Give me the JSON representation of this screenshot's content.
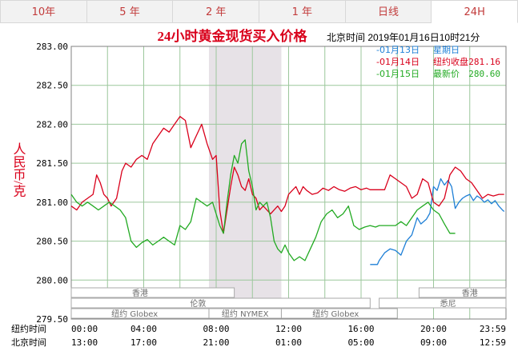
{
  "tabs": [
    {
      "label": "10年",
      "active": false
    },
    {
      "label": "5 年",
      "active": false
    },
    {
      "label": "2 年",
      "active": false
    },
    {
      "label": "1 年",
      "active": false
    },
    {
      "label": "日线",
      "active": false
    },
    {
      "label": "24H",
      "active": true
    }
  ],
  "colors": {
    "blue": "#1e7fd6",
    "red": "#d9001b",
    "green": "#22aa22",
    "grid": "#9cc79c",
    "nymex_band": "#e7e2e7",
    "axis_text": "#000000",
    "title": "#d9001b"
  },
  "header": {
    "timestamp": "北京时间  2019年01月16日10时21分"
  },
  "legend": [
    {
      "date": "01月13日",
      "label": "星期日",
      "value": "",
      "color_key": "blue"
    },
    {
      "date": "01月14日",
      "label": "纽约收盘",
      "value": "281.16",
      "color_key": "red"
    },
    {
      "date": "01月15日",
      "label": "最新价",
      "value": "280.60",
      "color_key": "green"
    }
  ],
  "market_labels": [
    "香港",
    "伦敦",
    "纽约 NYMEX",
    "纽约 Globex",
    "纽约 Globex",
    "悉尼",
    "香港"
  ],
  "time_row_labels": [
    "纽约时间",
    "北京时间"
  ],
  "chart_data": {
    "type": "line",
    "title": "24小时黄金现货买入价格",
    "ylabel": "人民币/克",
    "ylim": [
      279.5,
      283.0
    ],
    "yticks": [
      "283.00",
      "282.50",
      "282.00",
      "281.50",
      "281.00",
      "280.50",
      "280.00",
      "279.50"
    ],
    "xlim": [
      0,
      24
    ],
    "ny_time_ticks": [
      "00:00",
      "04:00",
      "08:00",
      "12:00",
      "16:00",
      "20:00",
      "23:59"
    ],
    "beijing_time_ticks": [
      "13:00",
      "17:00",
      "21:00",
      "01:00",
      "05:00",
      "09:00",
      "12:59"
    ],
    "nymex_session_hours": [
      7.6,
      11.6
    ],
    "series": [
      {
        "name": "01月13日",
        "color_key": "blue",
        "x": [
          16.5,
          16.9,
          17.0,
          17.3,
          17.6,
          17.9,
          18.2,
          18.5,
          18.8,
          19.1,
          19.3,
          19.6,
          19.8,
          20.0,
          20.2,
          20.4,
          20.6,
          20.8,
          21.0,
          21.2,
          21.4,
          21.6,
          21.8,
          22.0,
          22.2,
          22.4,
          22.6,
          22.8,
          23.0,
          23.2,
          23.4,
          23.6,
          23.8,
          23.9
        ],
        "y": [
          280.2,
          280.2,
          280.25,
          280.35,
          280.4,
          280.38,
          280.32,
          280.5,
          280.58,
          280.8,
          280.72,
          280.78,
          280.86,
          281.2,
          281.15,
          281.3,
          281.22,
          281.28,
          281.2,
          280.92,
          281.0,
          281.05,
          281.08,
          281.1,
          281.02,
          281.08,
          281.05,
          281.0,
          281.03,
          280.98,
          281.02,
          280.95,
          280.9,
          280.88
        ]
      },
      {
        "name": "01月14日",
        "color_key": "red",
        "x": [
          0.0,
          0.3,
          0.6,
          0.9,
          1.2,
          1.4,
          1.6,
          1.8,
          2.0,
          2.2,
          2.5,
          2.8,
          3.0,
          3.3,
          3.6,
          3.9,
          4.2,
          4.5,
          4.8,
          5.1,
          5.4,
          5.7,
          6.0,
          6.3,
          6.6,
          6.9,
          7.2,
          7.5,
          7.8,
          8.0,
          8.2,
          8.4,
          8.6,
          8.8,
          9.0,
          9.2,
          9.4,
          9.6,
          9.8,
          10.0,
          10.2,
          10.4,
          10.6,
          10.8,
          11.0,
          11.2,
          11.4,
          11.6,
          11.8,
          12.0,
          12.2,
          12.4,
          12.6,
          12.8,
          13.0,
          13.3,
          13.6,
          13.9,
          14.2,
          14.5,
          14.8,
          15.1,
          15.4,
          15.7,
          16.0,
          16.3,
          16.5,
          16.8,
          17.0,
          17.3,
          17.6,
          17.9,
          18.2,
          18.5,
          18.8,
          19.1,
          19.4,
          19.7,
          20.0,
          20.3,
          20.6,
          20.9,
          21.2,
          21.5,
          21.8,
          22.1,
          22.4,
          22.7,
          23.0,
          23.3,
          23.6,
          23.9
        ],
        "y": [
          280.95,
          280.9,
          281.0,
          281.05,
          281.1,
          281.35,
          281.25,
          281.1,
          281.05,
          280.95,
          281.05,
          281.4,
          281.5,
          281.45,
          281.55,
          281.6,
          281.55,
          281.75,
          281.85,
          281.95,
          281.9,
          282.0,
          282.1,
          282.05,
          281.7,
          281.85,
          282.0,
          281.75,
          281.55,
          281.6,
          280.9,
          280.6,
          280.9,
          281.2,
          281.45,
          281.35,
          281.2,
          281.15,
          281.3,
          281.1,
          281.05,
          280.9,
          280.95,
          280.9,
          280.85,
          280.9,
          280.95,
          280.88,
          280.95,
          281.1,
          281.15,
          281.2,
          281.1,
          281.2,
          281.15,
          281.1,
          281.12,
          281.18,
          281.15,
          281.2,
          281.16,
          281.14,
          281.18,
          281.2,
          281.16,
          281.18,
          281.16,
          281.16,
          281.16,
          281.16,
          281.35,
          281.3,
          281.25,
          281.2,
          281.05,
          281.1,
          281.3,
          281.25,
          281.0,
          280.95,
          281.05,
          281.35,
          281.45,
          281.4,
          281.3,
          281.25,
          281.15,
          281.05,
          281.1,
          281.08,
          281.1,
          281.1
        ]
      },
      {
        "name": "01月15日",
        "color_key": "green",
        "x": [
          0.0,
          0.3,
          0.6,
          0.9,
          1.2,
          1.5,
          1.8,
          2.1,
          2.4,
          2.7,
          3.0,
          3.3,
          3.6,
          3.9,
          4.2,
          4.5,
          4.8,
          5.1,
          5.4,
          5.7,
          6.0,
          6.3,
          6.6,
          6.9,
          7.2,
          7.5,
          7.8,
          8.0,
          8.2,
          8.4,
          8.6,
          8.8,
          9.0,
          9.2,
          9.4,
          9.6,
          9.8,
          10.0,
          10.2,
          10.4,
          10.6,
          10.8,
          11.0,
          11.2,
          11.4,
          11.6,
          11.8,
          12.0,
          12.3,
          12.6,
          12.9,
          13.2,
          13.5,
          13.8,
          14.1,
          14.4,
          14.7,
          15.0,
          15.3,
          15.6,
          15.9,
          16.2,
          16.5,
          16.8,
          17.0,
          17.3,
          17.6,
          17.9,
          18.2,
          18.5,
          18.8,
          19.1,
          19.4,
          19.7,
          20.0,
          20.3,
          20.6,
          20.9,
          21.2
        ],
        "y": [
          281.1,
          281.0,
          280.95,
          281.0,
          280.95,
          280.9,
          280.95,
          281.0,
          280.95,
          280.9,
          280.8,
          280.5,
          280.42,
          280.48,
          280.52,
          280.45,
          280.5,
          280.55,
          280.5,
          280.45,
          280.7,
          280.65,
          280.75,
          281.05,
          281.0,
          280.95,
          281.0,
          280.85,
          280.7,
          280.6,
          281.0,
          281.35,
          281.6,
          281.5,
          281.75,
          281.8,
          281.4,
          281.2,
          280.9,
          281.0,
          280.95,
          281.0,
          280.8,
          280.5,
          280.4,
          280.35,
          280.45,
          280.35,
          280.25,
          280.3,
          280.25,
          280.4,
          280.55,
          280.75,
          280.85,
          280.9,
          280.8,
          280.85,
          280.95,
          280.7,
          280.65,
          280.68,
          280.7,
          280.68,
          280.7,
          280.7,
          280.7,
          280.7,
          280.75,
          280.7,
          280.8,
          280.9,
          280.95,
          281.0,
          280.9,
          280.85,
          280.72,
          280.6,
          280.6
        ]
      }
    ]
  }
}
